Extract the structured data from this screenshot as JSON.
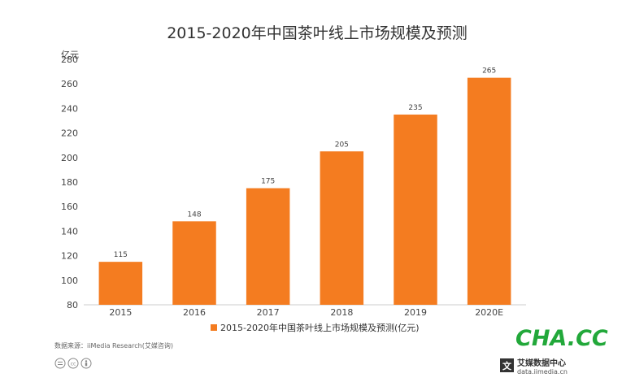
{
  "chart_data": {
    "type": "bar",
    "title": "2015-2020年中国茶叶线上市场规模及预测",
    "unit_label": "亿元",
    "categories": [
      "2015",
      "2016",
      "2017",
      "2018",
      "2019",
      "2020E"
    ],
    "series": [
      {
        "name": "2015-2020年中国茶叶线上市场规模及预测(亿元)",
        "values": [
          115,
          148,
          175,
          205,
          235,
          265
        ],
        "color": "#f47c20"
      }
    ],
    "ylim": [
      80,
      280
    ],
    "yticks": [
      80,
      100,
      120,
      140,
      160,
      180,
      200,
      220,
      240,
      260,
      280
    ],
    "grid": false,
    "legend_position": "bottom-center"
  },
  "source_text": "数据来源：iiMedia Research(艾媒咨询)",
  "watermark": {
    "brand": "CHA.CC",
    "stamp_cn": "艾媒数据中心",
    "stamp_url": "data.iimedia.cn"
  }
}
